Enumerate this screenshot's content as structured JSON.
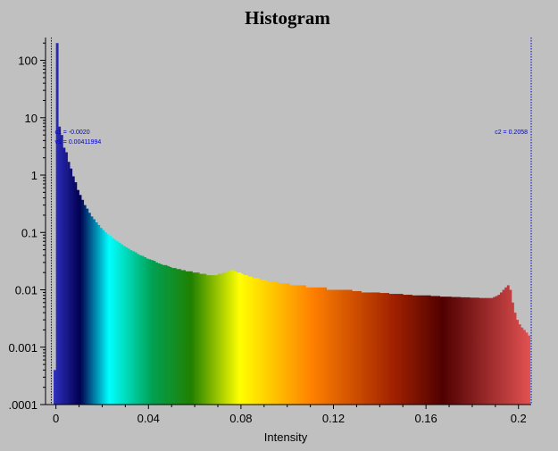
{
  "chart_data": {
    "type": "bar",
    "title": "Histogram",
    "xlabel": "Intensity",
    "ylabel": "",
    "xlim": [
      -0.0045,
      0.2055
    ],
    "ylim": [
      0.0001,
      250
    ],
    "y_scale": "log",
    "grid": false,
    "legend": "none",
    "x_ticks": [
      0,
      0.04,
      0.08,
      0.12,
      0.16,
      0.2
    ],
    "x_tick_labels": [
      "0",
      "0.04",
      "0.08",
      "0.12",
      "0.16",
      "0.2"
    ],
    "y_ticks": [
      0.0001,
      0.001,
      0.01,
      0.1,
      1,
      10,
      100
    ],
    "y_tick_labels": [
      ".0001",
      "0.001",
      "0.01",
      "0.1",
      "1",
      "10",
      "100"
    ],
    "cursors": [
      {
        "name": "c1",
        "x": -0.002,
        "label": "c1 = -0.0020",
        "side": "left"
      },
      {
        "name": "c2",
        "x": 0.2058,
        "label": "c2 = 0.2058",
        "side": "right"
      }
    ],
    "cursor_extra_label": "v1 = 0.00411994",
    "colormap": [
      "#3c3ce0",
      "#000050",
      "#00ffff",
      "#00a050",
      "#208000",
      "#ffff00",
      "#ff8000",
      "#a02000",
      "#500000",
      "#e05050"
    ],
    "colormap_stops": [
      0,
      0.07,
      0.13,
      0.22,
      0.3,
      0.4,
      0.55,
      0.72,
      0.82,
      1
    ],
    "bins": {
      "start": -0.001,
      "width": 0.001,
      "values": [
        0.0004,
        200,
        7,
        5,
        3,
        2.5,
        1.7,
        1.3,
        0.95,
        0.75,
        0.55,
        0.45,
        0.37,
        0.3,
        0.26,
        0.22,
        0.19,
        0.17,
        0.15,
        0.135,
        0.12,
        0.11,
        0.1,
        0.093,
        0.087,
        0.08,
        0.075,
        0.07,
        0.066,
        0.062,
        0.058,
        0.055,
        0.052,
        0.049,
        0.047,
        0.045,
        0.042,
        0.04,
        0.039,
        0.037,
        0.035,
        0.034,
        0.033,
        0.032,
        0.03,
        0.029,
        0.028,
        0.027,
        0.027,
        0.026,
        0.025,
        0.024,
        0.024,
        0.023,
        0.023,
        0.022,
        0.022,
        0.021,
        0.021,
        0.021,
        0.02,
        0.02,
        0.02,
        0.019,
        0.019,
        0.019,
        0.018,
        0.018,
        0.018,
        0.018,
        0.018,
        0.019,
        0.019,
        0.02,
        0.02,
        0.021,
        0.022,
        0.022,
        0.021,
        0.02,
        0.02,
        0.019,
        0.018,
        0.018,
        0.017,
        0.017,
        0.016,
        0.016,
        0.016,
        0.015,
        0.015,
        0.015,
        0.014,
        0.014,
        0.014,
        0.014,
        0.014,
        0.013,
        0.013,
        0.013,
        0.013,
        0.013,
        0.012,
        0.012,
        0.012,
        0.012,
        0.012,
        0.012,
        0.012,
        0.011,
        0.011,
        0.011,
        0.011,
        0.011,
        0.011,
        0.011,
        0.011,
        0.011,
        0.01,
        0.01,
        0.01,
        0.01,
        0.01,
        0.01,
        0.01,
        0.01,
        0.01,
        0.01,
        0.01,
        0.0095,
        0.0095,
        0.0095,
        0.0095,
        0.009,
        0.009,
        0.009,
        0.009,
        0.009,
        0.009,
        0.009,
        0.009,
        0.0088,
        0.0088,
        0.0088,
        0.0088,
        0.0085,
        0.0085,
        0.0085,
        0.0085,
        0.0085,
        0.0085,
        0.0082,
        0.0082,
        0.0082,
        0.0082,
        0.008,
        0.008,
        0.008,
        0.008,
        0.008,
        0.008,
        0.008,
        0.008,
        0.0078,
        0.0078,
        0.0078,
        0.0078,
        0.0076,
        0.0076,
        0.0076,
        0.0076,
        0.0076,
        0.0075,
        0.0075,
        0.0075,
        0.0075,
        0.0074,
        0.0074,
        0.0074,
        0.0074,
        0.0073,
        0.0073,
        0.0073,
        0.0073,
        0.0072,
        0.0072,
        0.0072,
        0.0072,
        0.0072,
        0.0072,
        0.0075,
        0.0078,
        0.0082,
        0.009,
        0.01,
        0.011,
        0.012,
        0.01,
        0.006,
        0.004,
        0.003,
        0.0025,
        0.0022,
        0.002,
        0.0018,
        0.0016
      ]
    }
  }
}
